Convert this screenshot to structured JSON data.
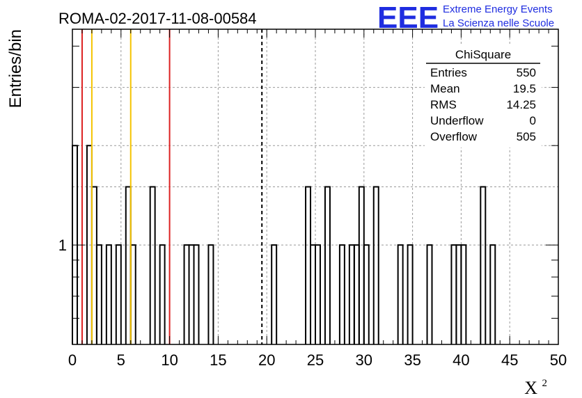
{
  "chart_data": {
    "type": "histogram",
    "title": "ROMA-02-2017-11-08-00584",
    "xlabel": "X",
    "xlabel_superscript": "2",
    "ylabel": "Entries/bin",
    "logo": {
      "text": "EEE",
      "line1": "Extreme Energy Events",
      "line2": "La Scienza nelle Scuole",
      "color": "#1f2de0"
    },
    "xlim": [
      0,
      50
    ],
    "ylim": [
      0.5,
      4.5
    ],
    "y_scale": "log",
    "bin_width": 0.5,
    "x_ticks": [
      0,
      5,
      10,
      15,
      20,
      25,
      30,
      35,
      40,
      45,
      50
    ],
    "y_tick_labels": [
      1
    ],
    "grid": true,
    "bins": [
      {
        "x": 0.0,
        "y": 2
      },
      {
        "x": 1.5,
        "y": 2
      },
      {
        "x": 2.0,
        "y": 1.5
      },
      {
        "x": 2.5,
        "y": 1
      },
      {
        "x": 3.5,
        "y": 1
      },
      {
        "x": 4.5,
        "y": 1
      },
      {
        "x": 5.5,
        "y": 1.5
      },
      {
        "x": 6.0,
        "y": 1
      },
      {
        "x": 8.0,
        "y": 1.5
      },
      {
        "x": 9.0,
        "y": 1
      },
      {
        "x": 11.5,
        "y": 1
      },
      {
        "x": 12.0,
        "y": 1
      },
      {
        "x": 12.5,
        "y": 1
      },
      {
        "x": 14.0,
        "y": 1
      },
      {
        "x": 20.5,
        "y": 1
      },
      {
        "x": 24.0,
        "y": 1.5
      },
      {
        "x": 24.5,
        "y": 1
      },
      {
        "x": 25.0,
        "y": 1
      },
      {
        "x": 26.0,
        "y": 1.5
      },
      {
        "x": 27.5,
        "y": 1
      },
      {
        "x": 28.5,
        "y": 1
      },
      {
        "x": 29.0,
        "y": 1
      },
      {
        "x": 29.5,
        "y": 1.5
      },
      {
        "x": 30.0,
        "y": 1
      },
      {
        "x": 31.0,
        "y": 1.5
      },
      {
        "x": 33.5,
        "y": 1
      },
      {
        "x": 34.5,
        "y": 1
      },
      {
        "x": 36.5,
        "y": 1
      },
      {
        "x": 39.0,
        "y": 1
      },
      {
        "x": 39.5,
        "y": 1
      },
      {
        "x": 40.0,
        "y": 1
      },
      {
        "x": 42.0,
        "y": 1.5
      },
      {
        "x": 43.0,
        "y": 1
      }
    ],
    "vertical_lines": [
      {
        "x": 1,
        "color": "#dd2222",
        "style": "solid"
      },
      {
        "x": 2,
        "color": "#f5c400",
        "style": "solid"
      },
      {
        "x": 6,
        "color": "#f5c400",
        "style": "solid"
      },
      {
        "x": 10,
        "color": "#dd2222",
        "style": "solid"
      },
      {
        "x": 19.5,
        "color": "#000000",
        "style": "dashed"
      }
    ],
    "stats_box": {
      "title": "ChiSquare",
      "rows": [
        {
          "label": "Entries",
          "value": "550"
        },
        {
          "label": "Mean",
          "value": "19.5"
        },
        {
          "label": "RMS",
          "value": "14.25"
        },
        {
          "label": "Underflow",
          "value": "0"
        },
        {
          "label": "Overflow",
          "value": "505"
        }
      ]
    }
  }
}
